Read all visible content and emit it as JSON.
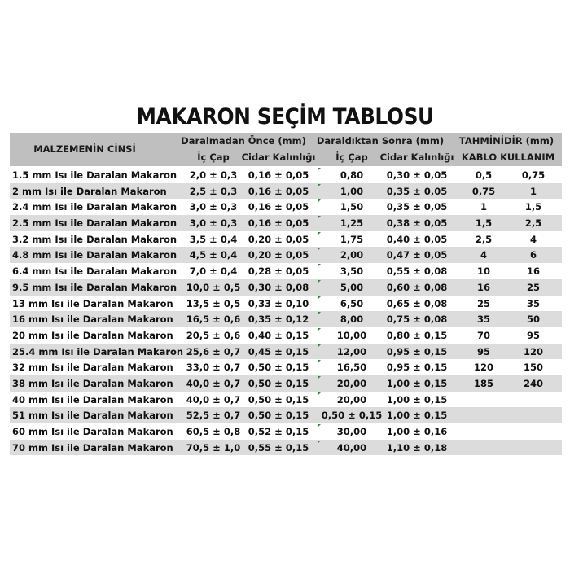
{
  "title": "MAKARON SEÇİM TABLOSU",
  "header": {
    "material": "MALZEMENİN CİNSİ",
    "before": "Daralmadan Önce (mm)",
    "after": "Daraldıktan Sonra (mm)",
    "estimate": "TAHMİNİDİR (mm)",
    "inner1": "İç Çap",
    "wall1": "Cidar Kalınlığı",
    "inner2": "İç Çap",
    "wall2": "Cidar Kalınlığı",
    "cable": "KABLO KULLANIM"
  },
  "colors": {
    "header_bg": "#bfbfbf",
    "alt_row_bg": "#dcdcdc",
    "marker": "#2e8b2e"
  },
  "rows": [
    {
      "name": "1.5 mm Isı ile Daralan Makaron",
      "in1": "2,0 ± 0,3",
      "w1": "0,16 ± 0,05",
      "in2": "0,80",
      "w2": "0,30 ± 0,05",
      "k1": "0,5",
      "k2": "0,75",
      "mark": true
    },
    {
      "name": "2 mm Isı ile Daralan Makaron",
      "in1": "2,5 ± 0,3",
      "w1": "0,16 ± 0,05",
      "in2": "1,00",
      "w2": "0,35 ± 0,05",
      "k1": "0,75",
      "k2": "1",
      "mark": true
    },
    {
      "name": "2.4 mm Isı ile Daralan Makaron",
      "in1": "3,0 ± 0,3",
      "w1": "0,16 ± 0,05",
      "in2": "1,50",
      "w2": "0,35 ± 0,05",
      "k1": "1",
      "k2": "1,5",
      "mark": true
    },
    {
      "name": "2.5 mm Isı ile Daralan Makaron",
      "in1": "3,0 ± 0,3",
      "w1": "0,16 ± 0,05",
      "in2": "1,25",
      "w2": "0,38 ± 0,05",
      "k1": "1,5",
      "k2": "2,5",
      "mark": true
    },
    {
      "name": "3.2 mm Isı ile Daralan Makaron",
      "in1": "3,5 ± 0,4",
      "w1": "0,20 ± 0,05",
      "in2": "1,75",
      "w2": "0,40 ± 0,05",
      "k1": "2,5",
      "k2": "4",
      "mark": true
    },
    {
      "name": "4.8 mm Isı ile Daralan Makaron",
      "in1": "4,5 ± 0,4",
      "w1": "0,20 ± 0,05",
      "in2": "2,00",
      "w2": "0,47 ± 0,05",
      "k1": "4",
      "k2": "6",
      "mark": true
    },
    {
      "name": "6.4 mm Isı ile Daralan Makaron",
      "in1": "7,0 ± 0,4",
      "w1": "0,28 ± 0,05",
      "in2": "3,50",
      "w2": "0,55 ± 0,08",
      "k1": "10",
      "k2": "16",
      "mark": true
    },
    {
      "name": "9.5 mm Isı ile Daralan Makaron",
      "in1": "10,0 ± 0,5",
      "w1": "0,30 ± 0,08",
      "in2": "5,00",
      "w2": "0,60 ± 0,08",
      "k1": "16",
      "k2": "25",
      "mark": true
    },
    {
      "name": "13 mm Isı ile Daralan Makaron",
      "in1": "13,5 ± 0,5",
      "w1": "0,33 ± 0,10",
      "in2": "6,50",
      "w2": "0,65 ± 0,08",
      "k1": "25",
      "k2": "35",
      "mark": true
    },
    {
      "name": "16 mm Isı ile Daralan Makaron",
      "in1": "16,5 ± 0,6",
      "w1": "0,35 ± 0,12",
      "in2": "8,00",
      "w2": "0,75 ± 0,08",
      "k1": "35",
      "k2": "50",
      "mark": true
    },
    {
      "name": "20 mm Isı ile Daralan Makaron",
      "in1": "20,5 ± 0,6",
      "w1": "0,40 ± 0,15",
      "in2": "10,00",
      "w2": "0,80 ± 0,15",
      "k1": "70",
      "k2": "95",
      "mark": true
    },
    {
      "name": "25.4 mm Isı ile Daralan Makaron",
      "in1": "25,6 ± 0,7",
      "w1": "0,45 ± 0,15",
      "in2": "12,00",
      "w2": "0,95 ± 0,15",
      "k1": "95",
      "k2": "120",
      "mark": true
    },
    {
      "name": "32 mm Isı ile Daralan Makaron",
      "in1": "33,0 ± 0,7",
      "w1": "0,50 ± 0,15",
      "in2": "16,50",
      "w2": "0,95 ± 0,15",
      "k1": "120",
      "k2": "150",
      "mark": true
    },
    {
      "name": "38 mm Isı ile Daralan Makaron",
      "in1": "40,0 ± 0,7",
      "w1": "0,50 ± 0,15",
      "in2": "20,00",
      "w2": "1,00 ± 0,15",
      "k1": "185",
      "k2": "240",
      "mark": true
    },
    {
      "name": "40 mm Isı ile Daralan Makaron",
      "in1": "40,0 ± 0,7",
      "w1": "0,50 ± 0,15",
      "in2": "20,00",
      "w2": "1,00 ± 0,15",
      "k1": "",
      "k2": "",
      "mark": true
    },
    {
      "name": "51 mm Isı ile Daralan Makaron",
      "in1": "52,5 ± 0,7",
      "w1": "0,50 ± 0,15",
      "in2": "0,50 ± 0,15",
      "w2": "1,00 ± 0,15",
      "k1": "",
      "k2": "",
      "mark": false
    },
    {
      "name": "60 mm Isı ile Daralan Makaron",
      "in1": "60,5 ± 0,8",
      "w1": "0,52 ± 0,15",
      "in2": "30,00",
      "w2": "1,00 ± 0,16",
      "k1": "",
      "k2": "",
      "mark": true
    },
    {
      "name": "70 mm Isı ile Daralan Makaron",
      "in1": "70,5 ± 1,0",
      "w1": "0,55 ± 0,15",
      "in2": "40,00",
      "w2": "1,10 ± 0,18",
      "k1": "",
      "k2": "",
      "mark": true
    }
  ]
}
